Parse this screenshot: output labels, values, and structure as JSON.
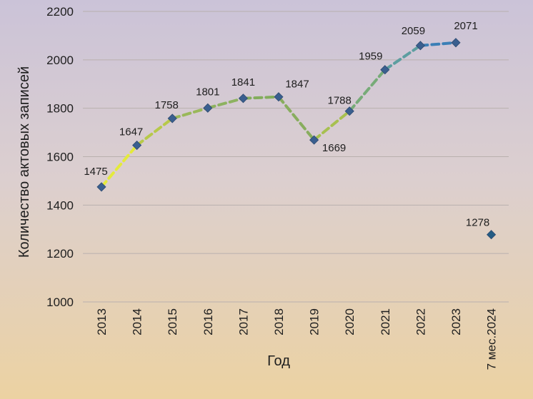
{
  "chart_data": {
    "type": "line",
    "categories": [
      "2013",
      "2014",
      "2015",
      "2016",
      "2017",
      "2018",
      "2019",
      "2020",
      "2021",
      "2022",
      "2023",
      "7 мес.2024"
    ],
    "values": [
      1475,
      1647,
      1758,
      1801,
      1841,
      1847,
      1669,
      1788,
      1959,
      2059,
      2071,
      1278
    ],
    "labels": [
      "1475",
      "1647",
      "1758",
      "1801",
      "1841",
      "1847",
      "1669",
      "1788",
      "1959",
      "2059",
      "2071",
      "1278"
    ],
    "connected_points": 11,
    "line_style": "dashed",
    "line_colors": [
      "#e4ea3c",
      "#b7c94a",
      "#9ab85a",
      "#8db260",
      "#83ad5c",
      "#88ad5e",
      "#a7c050",
      "#77ab78",
      "#5d9ea0",
      "#3b7fb6",
      "#2e6fae"
    ],
    "marker": "diamond",
    "marker_color": "#3a5f8f",
    "last_marker_color": "#245c84",
    "xlabel": "Год",
    "ylabel": "Количество актовых записей",
    "ylim": [
      1000,
      2200
    ],
    "yticks": [
      "1000",
      "1200",
      "1400",
      "1600",
      "1800",
      "2000",
      "2200"
    ],
    "grid": true,
    "legend": "none"
  }
}
